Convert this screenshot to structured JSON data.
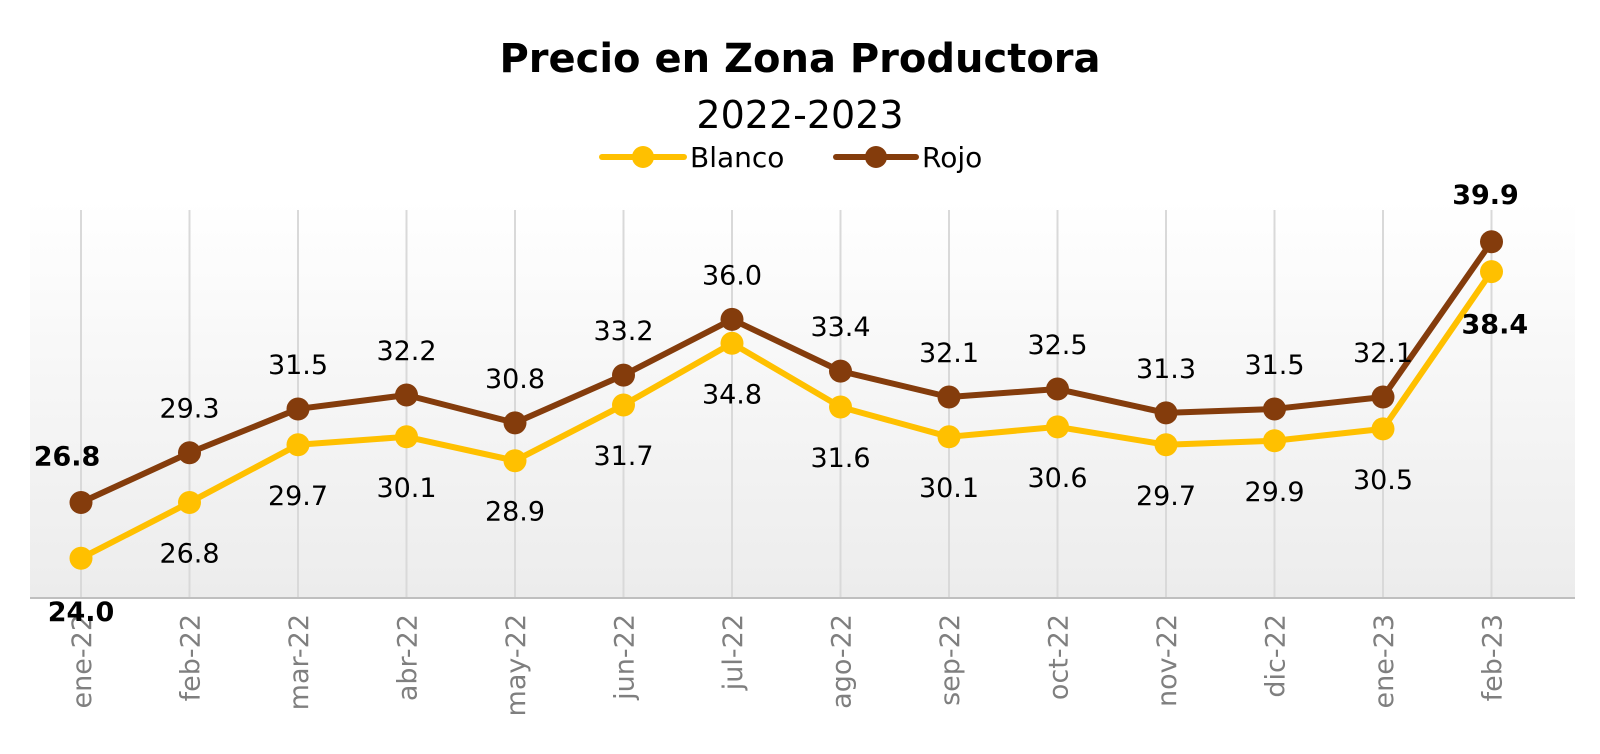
{
  "chart_data": {
    "type": "line",
    "title": "Precio en Zona Productora",
    "subtitle": "2022-2023",
    "categories": [
      "ene-22",
      "feb-22",
      "mar-22",
      "abr-22",
      "may-22",
      "jun-22",
      "jul-22",
      "ago-22",
      "sep-22",
      "oct-22",
      "nov-22",
      "dic-22",
      "ene-23",
      "feb-23"
    ],
    "series": [
      {
        "name": "Blanco",
        "color": "#FFC000",
        "values": [
          24.0,
          26.8,
          29.7,
          30.1,
          28.9,
          31.7,
          34.8,
          31.6,
          30.1,
          30.6,
          29.7,
          29.9,
          30.5,
          38.4
        ],
        "labels": [
          "24.0",
          "26.8",
          "29.7",
          "30.1",
          "28.9",
          "31.7",
          "34.8",
          "31.6",
          "30.1",
          "30.6",
          "29.7",
          "29.9",
          "30.5",
          "38.4"
        ]
      },
      {
        "name": "Rojo",
        "color": "#843C0C",
        "values": [
          26.8,
          29.3,
          31.5,
          32.2,
          30.8,
          33.2,
          36.0,
          33.4,
          32.1,
          32.5,
          31.3,
          31.5,
          32.1,
          39.9
        ],
        "labels": [
          "26.8",
          "29.3",
          "31.5",
          "32.2",
          "30.8",
          "33.2",
          "36.0",
          "33.4",
          "32.1",
          "32.5",
          "31.3",
          "31.5",
          "32.1",
          "39.9"
        ]
      }
    ],
    "ylim": [
      22,
      42
    ],
    "grid": "vertical",
    "legend": "top-center",
    "colors": {
      "gridline": "#d9d9d9",
      "axis": "#bfbfbf",
      "tick_text": "#7f7f7f"
    }
  }
}
